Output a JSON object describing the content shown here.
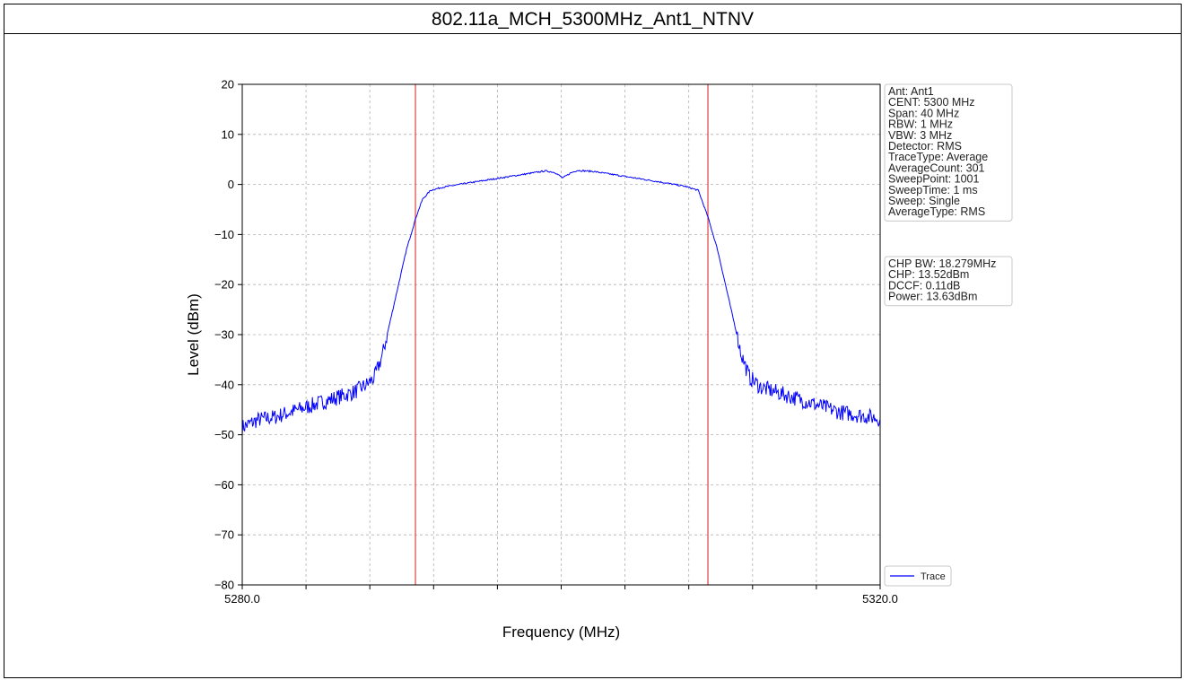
{
  "page_title": "802.11a_MCH_5300MHz_Ant1_NTNV",
  "colors": {
    "trace": "#0000ff",
    "marker": "#e05050",
    "grid": "#b0b0b0",
    "axis": "#000000"
  },
  "chart_data": {
    "type": "line",
    "title": "802.11a_MCH_5300MHz_Ant1_NTNV",
    "xlabel": "Frequency (MHz)",
    "ylabel": "Level (dBm)",
    "xlim": [
      5280.0,
      5320.0
    ],
    "ylim": [
      -80,
      20
    ],
    "x_tick_labels": [
      {
        "value": 5280.0,
        "label": "5280.0"
      },
      {
        "value": 5320.0,
        "label": "5320.0"
      }
    ],
    "x_minor_ticks": [
      5284,
      5288,
      5292,
      5296,
      5300,
      5304,
      5308,
      5312,
      5316
    ],
    "y_ticks": [
      20,
      10,
      0,
      -10,
      -20,
      -30,
      -40,
      -50,
      -60,
      -70,
      -80
    ],
    "grid": true,
    "markers": [
      5290.86,
      5309.2
    ],
    "series": [
      {
        "name": "Trace",
        "points": [
          [
            5280.0,
            -48.5
          ],
          [
            5281.0,
            -47.0
          ],
          [
            5282.0,
            -46.5
          ],
          [
            5283.0,
            -45.5
          ],
          [
            5284.0,
            -44.5
          ],
          [
            5285.0,
            -43.5
          ],
          [
            5286.0,
            -42.5
          ],
          [
            5287.0,
            -41.5
          ],
          [
            5287.8,
            -40.0
          ],
          [
            5288.3,
            -38.5
          ],
          [
            5288.8,
            -34.0
          ],
          [
            5289.3,
            -27.0
          ],
          [
            5289.8,
            -20.0
          ],
          [
            5290.3,
            -13.0
          ],
          [
            5290.9,
            -6.5
          ],
          [
            5291.3,
            -3.0
          ],
          [
            5291.8,
            -1.2
          ],
          [
            5292.5,
            -0.6
          ],
          [
            5294.0,
            0.2
          ],
          [
            5296.0,
            1.2
          ],
          [
            5298.0,
            2.2
          ],
          [
            5299.0,
            2.7
          ],
          [
            5299.6,
            2.4
          ],
          [
            5300.1,
            1.3
          ],
          [
            5300.6,
            2.3
          ],
          [
            5301.0,
            2.8
          ],
          [
            5302.0,
            2.6
          ],
          [
            5304.0,
            1.6
          ],
          [
            5306.0,
            0.6
          ],
          [
            5307.8,
            -0.4
          ],
          [
            5308.6,
            -1.2
          ],
          [
            5309.2,
            -6.5
          ],
          [
            5309.8,
            -13.0
          ],
          [
            5310.3,
            -20.0
          ],
          [
            5310.8,
            -27.0
          ],
          [
            5311.3,
            -34.0
          ],
          [
            5311.8,
            -38.5
          ],
          [
            5312.5,
            -40.5
          ],
          [
            5313.5,
            -41.5
          ],
          [
            5314.5,
            -42.5
          ],
          [
            5315.5,
            -43.5
          ],
          [
            5316.5,
            -44.5
          ],
          [
            5317.5,
            -45.5
          ],
          [
            5318.5,
            -46.0
          ],
          [
            5319.5,
            -46.5
          ],
          [
            5320.0,
            -46.8
          ]
        ]
      }
    ],
    "info_box": [
      "Ant: Ant1",
      "CENT: 5300 MHz",
      "Span: 40 MHz",
      "RBW: 1 MHz",
      "VBW: 3 MHz",
      "Detector: RMS",
      "TraceType: Average",
      "AverageCount: 301",
      "SweepPoint: 1001",
      "SweepTime: 1 ms",
      "Sweep: Single",
      "AverageType: RMS"
    ],
    "result_box": [
      "CHP BW: 18.279MHz",
      "CHP: 13.52dBm",
      "DCCF: 0.11dB",
      "Power: 13.63dBm"
    ],
    "legend": {
      "entries": [
        "Trace"
      ],
      "placement": "lower-right, outside plot"
    }
  }
}
